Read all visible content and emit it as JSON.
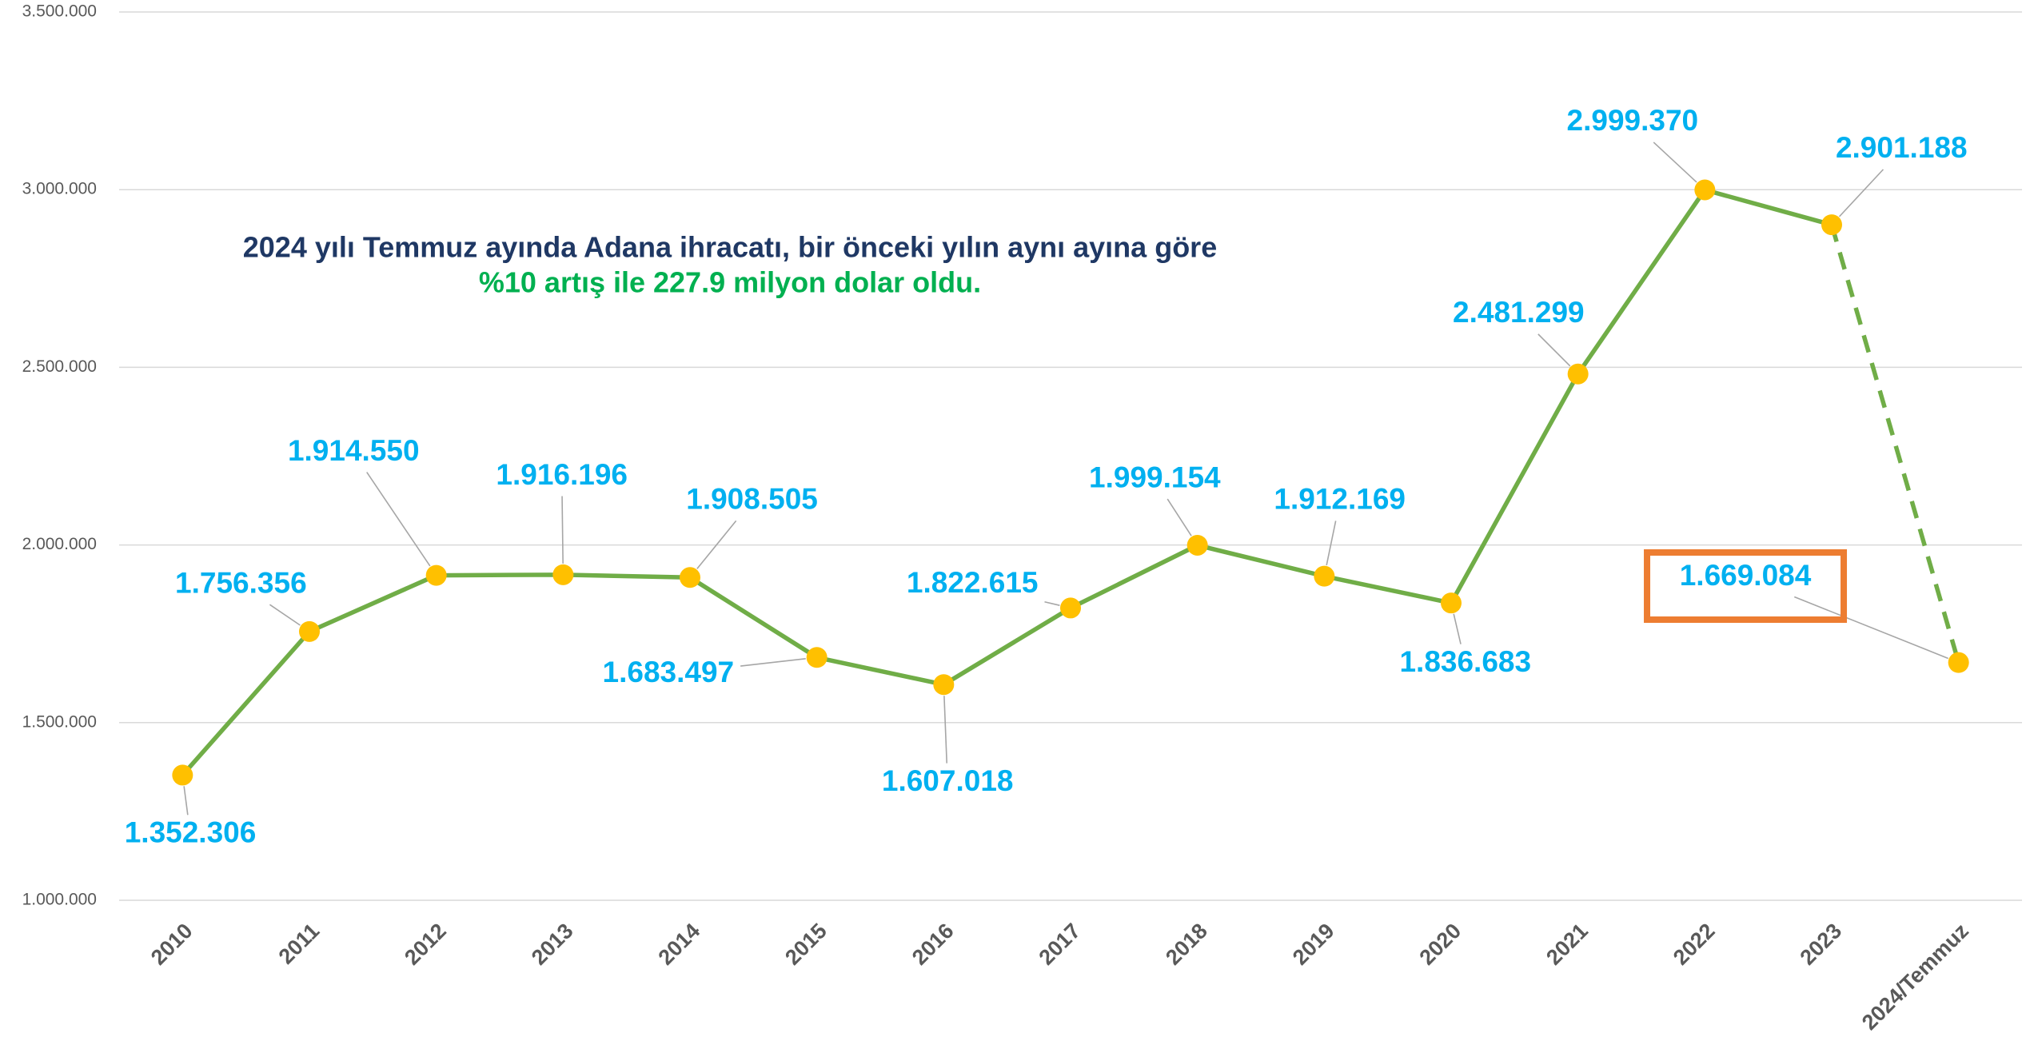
{
  "chart_data": {
    "type": "line",
    "annotations": [
      "2024 yılı Temmuz ayında Adana ihracatı, bir önceki yılın aynı ayına göre",
      "%10 artış ile 227.9 milyon dolar oldu."
    ],
    "categories": [
      "2010",
      "2011",
      "2012",
      "2013",
      "2014",
      "2015",
      "2016",
      "2017",
      "2018",
      "2019",
      "2020",
      "2021",
      "2022",
      "2023",
      "2024/Temmuz"
    ],
    "series": [
      {
        "color": "#70ad47",
        "marker_color": "#ffc000",
        "label_color": "#00b0f0",
        "dash_last_segment": true,
        "values": [
          1352306,
          1756356,
          1914550,
          1916196,
          1908505,
          1683497,
          1607018,
          1822615,
          1999154,
          1912169,
          1836683,
          2481299,
          2999370,
          2901188,
          1669084
        ],
        "value_labels": [
          "1.352.306",
          "1.756.356",
          "1.914.550",
          "1.916.196",
          "1.908.505",
          "1.683.497",
          "1.607.018",
          "1.822.615",
          "1.999.154",
          "1.912.169",
          "1.836.683",
          "2.481.299",
          "2.999.370",
          "2.901.188",
          "1.669.084"
        ]
      }
    ],
    "highlight": {
      "index": 14,
      "color": "#ed7d31"
    },
    "ylim": [
      1000000,
      3500000
    ],
    "yticks": [
      {
        "value": 1000000,
        "label": "1.000.000"
      },
      {
        "value": 1500000,
        "label": "1.500.000"
      },
      {
        "value": 2000000,
        "label": "2.000.000"
      },
      {
        "value": 2500000,
        "label": "2.500.000"
      },
      {
        "value": 3000000,
        "label": "3.000.000"
      },
      {
        "value": 3500000,
        "label": "3.500.000"
      }
    ],
    "grid": true
  }
}
